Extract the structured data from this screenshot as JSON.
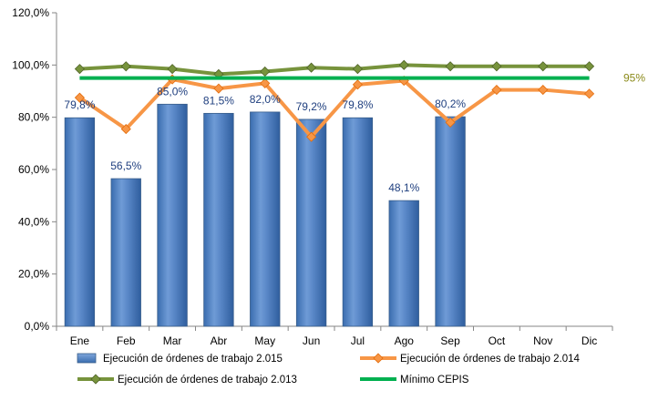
{
  "chart_data": {
    "type": "bar",
    "categories": [
      "Ene",
      "Feb",
      "Mar",
      "Abr",
      "May",
      "Jun",
      "Jul",
      "Ago",
      "Sep",
      "Oct",
      "Nov",
      "Dic"
    ],
    "ylim": [
      0,
      120
    ],
    "yticks": [
      "0,0%",
      "20,0%",
      "40,0%",
      "60,0%",
      "80,0%",
      "100,0%",
      "120,0%"
    ],
    "ytick_values": [
      0,
      20,
      40,
      60,
      80,
      100,
      120
    ],
    "grid": false,
    "legend_position": "bottom",
    "series": [
      {
        "name": "Ejecución de órdenes de trabajo 2.015",
        "type": "bar",
        "color": "#4F81BD",
        "values": [
          79.8,
          56.5,
          85.0,
          81.5,
          82.0,
          79.2,
          79.8,
          48.1,
          80.2,
          null,
          null,
          null
        ],
        "labels": [
          "79,8%",
          "56,5%",
          "85,0%",
          "81,5%",
          "82,0%",
          "79,2%",
          "79,8%",
          "48,1%",
          "80,2%",
          "",
          "",
          ""
        ]
      },
      {
        "name": "Ejecución de órdenes de trabajo 2.014",
        "type": "line",
        "color": "#F79646",
        "values": [
          87.5,
          75.5,
          94.5,
          91.0,
          93.0,
          72.5,
          92.5,
          94.0,
          78.0,
          90.5,
          90.5,
          89.0
        ]
      },
      {
        "name": "Ejecución de órdenes de trabajo 2.013",
        "type": "line",
        "color": "#77933C",
        "values": [
          98.5,
          99.5,
          98.5,
          96.5,
          97.5,
          99.0,
          98.5,
          100.0,
          99.5,
          99.5,
          99.5,
          99.5
        ]
      },
      {
        "name": "Mínimo CEPIS",
        "type": "line",
        "color": "#00B050",
        "values": [
          95,
          95,
          95,
          95,
          95,
          95,
          95,
          95,
          95,
          95,
          95,
          95
        ]
      }
    ],
    "annotations": [
      {
        "text": "95%",
        "y": 95,
        "color": "#8B8A1A"
      }
    ]
  }
}
